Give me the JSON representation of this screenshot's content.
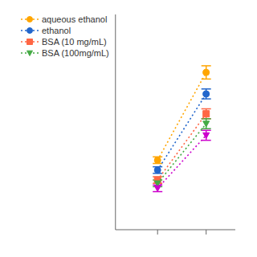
{
  "chart_data": {
    "type": "line",
    "x": [
      1,
      2.5
    ],
    "xlim": [
      -0.3,
      3.4
    ],
    "xticks": [
      1,
      2.5
    ],
    "ylim": [
      0.1,
      1.4
    ],
    "yticks": [],
    "grid": false,
    "legend": "upper left",
    "tick_labels": false,
    "series": [
      {
        "name": "aqueous ethanol",
        "color": "#FFA500",
        "marker": "circle",
        "line_style": "dotted",
        "values": [
          0.52,
          1.05
        ],
        "errors": [
          0.02,
          0.04
        ]
      },
      {
        "name": "ethanol",
        "color": "#2266CC",
        "marker": "circle",
        "line_style": "dotted",
        "values": [
          0.46,
          0.92
        ],
        "errors": [
          0.02,
          0.03
        ]
      },
      {
        "name": "BSA (10 mg/mL)",
        "color": "#FF6644",
        "marker": "square",
        "line_style": "dotted",
        "values": [
          0.4,
          0.8
        ],
        "errors": [
          0.02,
          0.03
        ]
      },
      {
        "name": "BSA (100mg/mL)",
        "color": "#44AA44",
        "marker": "triangle-down",
        "line_style": "dotted",
        "values": [
          0.38,
          0.74
        ],
        "errors": [
          0.02,
          0.03
        ]
      },
      {
        "color": "#CC00CC",
        "marker": "triangle-down",
        "line_style": "dotted",
        "values": [
          0.35,
          0.67
        ],
        "errors": [
          0.02,
          0.03
        ]
      }
    ]
  }
}
